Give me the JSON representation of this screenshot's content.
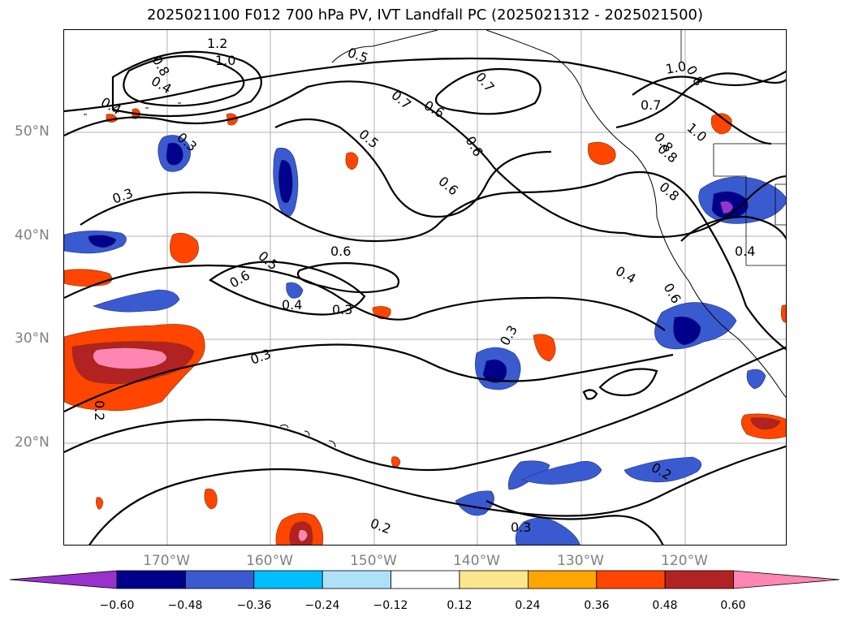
{
  "title": "2025021100 F012 700 hPa PV, IVT Landfall PC (2025021312 - 2025021500)",
  "axes": {
    "lat_labels": [
      "50°N",
      "40°N",
      "30°N",
      "20°N"
    ],
    "lon_labels": [
      "170°W",
      "160°W",
      "150°W",
      "140°W",
      "130°W",
      "120°W"
    ]
  },
  "contour_labels": [
    "1.2",
    "1.0",
    "0.8",
    "0.4",
    "0.4",
    "0.3",
    "0.3",
    "0.5",
    "0.7",
    "0.6",
    "0.7",
    "0.6",
    "0.5",
    "0.6",
    "0.8",
    "0.8",
    "1.0",
    "1.0",
    "0.7",
    "0.8",
    "0.8",
    "0.4",
    "0.4",
    "0.5",
    "0.6",
    "0.6",
    "0.4",
    "0.3",
    "0.3",
    "0.3",
    "0.2",
    "0.2",
    "0.3",
    "0.2",
    "0.6"
  ],
  "colorbar": {
    "ticks": [
      "−0.60",
      "−0.48",
      "−0.36",
      "−0.24",
      "−0.12",
      "0.12",
      "0.24",
      "0.36",
      "0.48",
      "0.60"
    ],
    "colors": [
      "#9932cc",
      "#00008b",
      "#3a5bd0",
      "#00bfff",
      "#aee0fa",
      "#ffffff",
      "#fbe68c",
      "#ffa500",
      "#ff4500",
      "#b22222",
      "#ff85b3"
    ]
  },
  "style": {
    "gridline_color": "#b0b0b0",
    "axis_label_color": "#808080"
  }
}
